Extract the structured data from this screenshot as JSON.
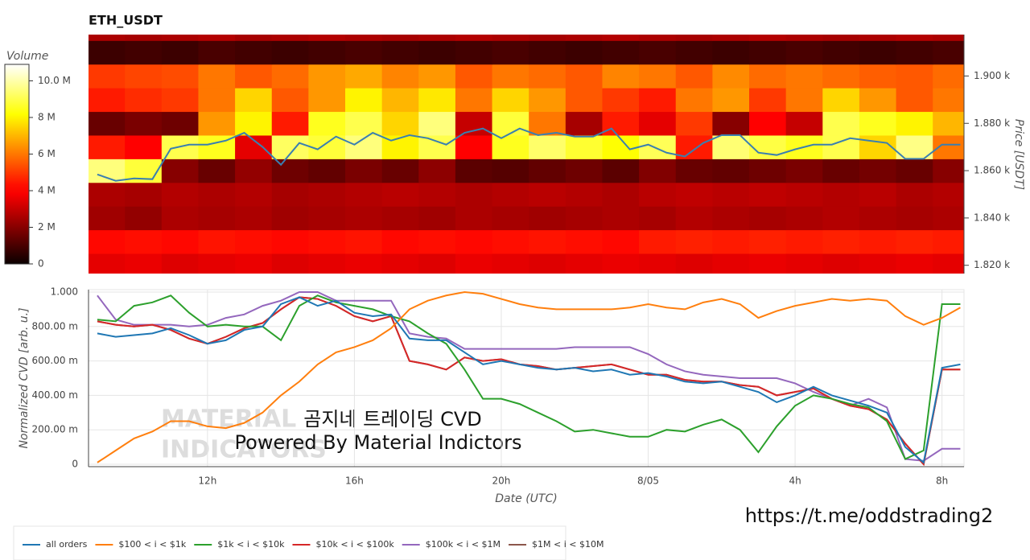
{
  "chart_data": [
    {
      "type": "heatmap",
      "title": "ETH_USDT",
      "ylabel": "Price [USDT]",
      "colormap": "hot",
      "xlim": [
        8.76,
        32.6
      ],
      "ylim": [
        1816.5,
        1917.5
      ],
      "yticks": [
        {
          "value": 1820,
          "label": "1.820 k"
        },
        {
          "value": 1840,
          "label": "1.840 k"
        },
        {
          "value": 1860,
          "label": "1.860 k"
        },
        {
          "value": 1880,
          "label": "1.880 k"
        },
        {
          "value": 1900,
          "label": "1.900 k"
        }
      ],
      "x_bins": [
        8.75,
        9.75,
        10.75,
        11.75,
        12.75,
        13.75,
        14.75,
        15.75,
        16.75,
        17.75,
        18.75,
        19.75,
        20.75,
        21.75,
        22.75,
        23.75,
        24.75,
        25.75,
        26.75,
        27.75,
        28.75,
        29.75,
        30.75,
        31.75,
        32.75
      ],
      "y_bins": [
        1815,
        1825,
        1835,
        1845,
        1855,
        1865,
        1875,
        1885,
        1895,
        1905,
        1915,
        1925
      ],
      "z": [
        [
          3.5,
          3.6,
          3.4,
          3.5,
          3.6,
          3.4,
          3.5,
          3.6,
          3.5,
          3.4,
          3.6,
          3.5,
          3.4,
          3.5,
          3.6,
          3.5,
          3.4,
          3.5,
          3.6,
          3.5,
          3.4,
          3.5,
          3.6,
          3.5
        ],
        [
          4.2,
          4.3,
          4.2,
          4.4,
          4.3,
          4.2,
          4.3,
          4.4,
          4.2,
          4.3,
          4.2,
          4.3,
          4.4,
          4.3,
          4.2,
          4.5,
          4.6,
          4.5,
          4.6,
          4.5,
          4.6,
          4.5,
          4.6,
          4.5
        ],
        [
          2.4,
          2.2,
          2.6,
          2.5,
          2.6,
          2.4,
          2.5,
          2.6,
          2.5,
          2.4,
          2.6,
          2.5,
          2.4,
          2.5,
          2.6,
          2.5,
          2.7,
          2.6,
          2.5,
          2.6,
          2.7,
          2.6,
          2.5,
          2.6
        ],
        [
          2.6,
          2.5,
          2.7,
          2.6,
          2.7,
          2.5,
          2.6,
          2.7,
          2.8,
          2.7,
          2.6,
          2.7,
          2.8,
          2.7,
          2.6,
          2.8,
          2.9,
          2.8,
          2.9,
          2.8,
          2.7,
          2.8,
          2.6,
          2.7
        ],
        [
          9.5,
          8.8,
          2.0,
          1.5,
          2.2,
          1.6,
          1.4,
          1.8,
          1.5,
          2.1,
          1.3,
          1.2,
          1.4,
          1.6,
          1.3,
          1.9,
          1.5,
          1.4,
          1.6,
          1.8,
          1.5,
          1.7,
          1.5,
          2.0
        ],
        [
          4.5,
          4.0,
          9.0,
          8.5,
          3.5,
          9.2,
          8.8,
          9.5,
          8.0,
          9.0,
          4.0,
          8.5,
          9.3,
          8.7,
          8.2,
          9.1,
          4.5,
          9.4,
          8.9,
          8.5,
          9.0,
          7.5,
          9.6,
          6.0
        ],
        [
          1.5,
          1.8,
          1.6,
          6.5,
          8.0,
          4.5,
          8.5,
          9.0,
          7.5,
          9.5,
          3.0,
          8.8,
          6.0,
          2.5,
          4.5,
          3.5,
          5.0,
          2.0,
          4.0,
          3.0,
          9.0,
          8.5,
          8.0,
          7.0
        ],
        [
          4.5,
          4.8,
          5.0,
          6.0,
          7.5,
          5.5,
          6.5,
          8.0,
          7.0,
          7.8,
          6.0,
          7.5,
          6.5,
          5.5,
          5.0,
          4.5,
          6.0,
          6.5,
          5.0,
          6.0,
          7.5,
          6.5,
          5.5,
          6.0
        ],
        [
          5.0,
          5.2,
          5.3,
          6.0,
          5.5,
          5.8,
          6.5,
          6.8,
          6.2,
          6.5,
          5.5,
          6.0,
          5.8,
          5.5,
          6.2,
          6.0,
          5.5,
          6.3,
          5.8,
          6.0,
          5.8,
          5.6,
          5.5,
          5.8
        ],
        [
          0.8,
          0.9,
          0.8,
          1.0,
          0.9,
          0.8,
          0.9,
          1.0,
          0.9,
          0.8,
          0.9,
          1.0,
          0.9,
          0.8,
          0.9,
          1.0,
          0.9,
          0.8,
          0.9,
          1.0,
          0.9,
          0.8,
          0.9,
          1.0
        ],
        [
          2.6,
          2.5,
          2.6,
          2.7,
          2.5,
          2.6,
          2.7,
          2.6,
          2.5,
          2.6,
          2.7,
          2.6,
          2.5,
          2.6,
          2.7,
          2.6,
          2.5,
          2.6,
          2.7,
          2.6,
          2.5,
          2.6,
          2.7,
          2.6
        ]
      ],
      "colorbar": {
        "title": "Volume",
        "clim": [
          0,
          10.9
        ],
        "ticks": [
          0,
          {
            "value": 2,
            "label": "2 M"
          },
          {
            "value": 4,
            "label": "4 M"
          },
          {
            "value": 6,
            "label": "6 M"
          },
          {
            "value": 8,
            "label": "8 M"
          },
          {
            "value": 10,
            "label": "10.0 M"
          }
        ]
      },
      "line": {
        "color": "#3a7fb0",
        "x": [
          9,
          9.5,
          10,
          10.5,
          11,
          11.5,
          12,
          12.5,
          13,
          13.5,
          14,
          14.5,
          15,
          15.5,
          16,
          16.5,
          17,
          17.5,
          18,
          18.5,
          19,
          19.5,
          20,
          20.5,
          21,
          21.5,
          22,
          22.5,
          23,
          23.5,
          24,
          24.5,
          25,
          25.5,
          26,
          26.5,
          27,
          27.5,
          28,
          28.5,
          29,
          29.5,
          30,
          30.5,
          31,
          31.5,
          32,
          32.5
        ],
        "values": [
          1858.4,
          1855.7,
          1856.7,
          1856.4,
          1869.3,
          1871,
          1871,
          1872.7,
          1876,
          1870,
          1862.5,
          1871.7,
          1869,
          1874.4,
          1871,
          1876,
          1872.7,
          1875,
          1873.7,
          1871,
          1876,
          1877.8,
          1873.7,
          1877.8,
          1875,
          1876,
          1874.4,
          1874.4,
          1877.8,
          1869,
          1871,
          1867.6,
          1866,
          1871.7,
          1875,
          1875,
          1867.6,
          1866.6,
          1869,
          1871,
          1871,
          1873.7,
          1872.7,
          1871.7,
          1865,
          1865,
          1871,
          1871
        ]
      }
    },
    {
      "type": "line",
      "xlabel": "Date (UTC)",
      "ylabel": "Normalized CVD [arb. u.]",
      "grid": true,
      "legend": "bottom-left",
      "xlim": [
        8.76,
        32.6
      ],
      "ylim": [
        -0.014,
        1.014
      ],
      "xticks": [
        {
          "value": 12,
          "label": "12h"
        },
        {
          "value": 16,
          "label": "16h"
        },
        {
          "value": 20,
          "label": "20h"
        },
        {
          "value": 24,
          "label": "8/05"
        },
        {
          "value": 28,
          "label": "4h"
        },
        {
          "value": 32,
          "label": "8h"
        }
      ],
      "yticks": [
        0,
        {
          "value": 0.2,
          "label": "200.00 m"
        },
        {
          "value": 0.4,
          "label": "400.00 m"
        },
        {
          "value": 0.6,
          "label": "600.00 m"
        },
        {
          "value": 0.8,
          "label": "800.00 m"
        },
        {
          "value": 1,
          "label": "1.000"
        }
      ],
      "x": [
        9,
        9.5,
        10,
        10.5,
        11,
        11.5,
        12,
        12.5,
        13,
        13.5,
        14,
        14.5,
        15,
        15.5,
        16,
        16.5,
        17,
        17.5,
        18,
        18.5,
        19,
        19.5,
        20,
        20.5,
        21,
        21.5,
        22,
        22.5,
        23,
        23.5,
        24,
        24.5,
        25,
        25.5,
        26,
        26.5,
        27,
        27.5,
        28,
        28.5,
        29,
        29.5,
        30,
        30.5,
        31,
        31.5,
        32,
        32.5
      ],
      "series": [
        {
          "name": "all orders",
          "color": "#1f77b4",
          "values": [
            0.76,
            0.74,
            0.75,
            0.76,
            0.79,
            0.75,
            0.7,
            0.72,
            0.78,
            0.8,
            0.93,
            0.97,
            0.92,
            0.95,
            0.88,
            0.86,
            0.87,
            0.73,
            0.72,
            0.72,
            0.65,
            0.58,
            0.6,
            0.58,
            0.56,
            0.55,
            0.56,
            0.54,
            0.55,
            0.52,
            0.53,
            0.51,
            0.48,
            0.47,
            0.48,
            0.45,
            0.42,
            0.36,
            0.4,
            0.45,
            0.4,
            0.37,
            0.34,
            0.3,
            0.1,
            0.01,
            0.56,
            0.58
          ]
        },
        {
          "name": "$100 < i < $1k",
          "color": "#ff7f0e",
          "values": [
            0.01,
            0.08,
            0.15,
            0.19,
            0.25,
            0.25,
            0.22,
            0.21,
            0.24,
            0.3,
            0.4,
            0.48,
            0.58,
            0.65,
            0.68,
            0.72,
            0.79,
            0.9,
            0.95,
            0.98,
            1.0,
            0.99,
            0.96,
            0.93,
            0.91,
            0.9,
            0.9,
            0.9,
            0.9,
            0.91,
            0.93,
            0.91,
            0.9,
            0.94,
            0.96,
            0.93,
            0.85,
            0.89,
            0.92,
            0.94,
            0.96,
            0.95,
            0.96,
            0.95,
            0.86,
            0.81,
            0.85,
            0.91
          ]
        },
        {
          "name": "$1k < i < $10k",
          "color": "#2ca02c",
          "values": [
            0.84,
            0.83,
            0.92,
            0.94,
            0.98,
            0.88,
            0.8,
            0.81,
            0.8,
            0.8,
            0.72,
            0.92,
            0.98,
            0.94,
            0.92,
            0.9,
            0.86,
            0.83,
            0.76,
            0.7,
            0.55,
            0.38,
            0.38,
            0.35,
            0.3,
            0.25,
            0.19,
            0.2,
            0.18,
            0.16,
            0.16,
            0.2,
            0.19,
            0.23,
            0.26,
            0.2,
            0.07,
            0.22,
            0.34,
            0.4,
            0.38,
            0.35,
            0.33,
            0.25,
            0.03,
            0.08,
            0.93,
            0.93
          ]
        },
        {
          "name": "$10k < i < $100k",
          "color": "#d62728",
          "values": [
            0.83,
            0.81,
            0.8,
            0.81,
            0.78,
            0.73,
            0.7,
            0.74,
            0.79,
            0.82,
            0.9,
            0.97,
            0.96,
            0.92,
            0.86,
            0.83,
            0.86,
            0.6,
            0.58,
            0.55,
            0.62,
            0.6,
            0.61,
            0.58,
            0.57,
            0.55,
            0.56,
            0.57,
            0.58,
            0.55,
            0.52,
            0.52,
            0.49,
            0.48,
            0.48,
            0.46,
            0.45,
            0.4,
            0.42,
            0.44,
            0.38,
            0.34,
            0.32,
            0.26,
            0.12,
            0.0,
            0.55,
            0.55
          ]
        },
        {
          "name": "$100k < i < $1M",
          "color": "#9467bd",
          "values": [
            0.98,
            0.84,
            0.81,
            0.81,
            0.81,
            0.8,
            0.81,
            0.85,
            0.87,
            0.92,
            0.95,
            1.0,
            1.0,
            0.95,
            0.95,
            0.95,
            0.95,
            0.76,
            0.74,
            0.73,
            0.67,
            0.67,
            0.67,
            0.67,
            0.67,
            0.67,
            0.68,
            0.68,
            0.68,
            0.68,
            0.64,
            0.58,
            0.54,
            0.52,
            0.51,
            0.5,
            0.5,
            0.5,
            0.47,
            0.42,
            0.38,
            0.34,
            0.38,
            0.33,
            0.03,
            0.02,
            0.09,
            0.09
          ]
        },
        {
          "name": "$1M < i < $10M",
          "color": "#8c564b",
          "values": [
            0.83,
            0.81,
            0.8,
            0.81,
            0.78,
            0.73,
            0.7,
            0.74,
            0.79,
            0.82,
            0.9,
            0.97,
            0.96,
            0.92,
            0.86,
            0.83,
            0.86,
            0.6,
            0.58,
            0.55,
            0.62,
            0.6,
            0.61,
            0.58,
            0.57,
            0.55,
            0.56,
            0.57,
            0.58,
            0.55,
            0.52,
            0.52,
            0.49,
            0.48,
            0.48,
            0.46,
            0.45,
            0.4,
            0.42,
            0.44,
            0.38,
            0.34,
            0.32,
            0.26,
            0.12,
            0.0,
            0.55,
            0.55
          ]
        }
      ],
      "annotations": {
        "watermark": [
          "MATERIAL",
          "INDICATORS"
        ],
        "caption": [
          "곰지네 트레이딩 CVD",
          "Powered By Material Indictors"
        ]
      }
    }
  ],
  "footer_link": "https://t.me/oddstrading2"
}
